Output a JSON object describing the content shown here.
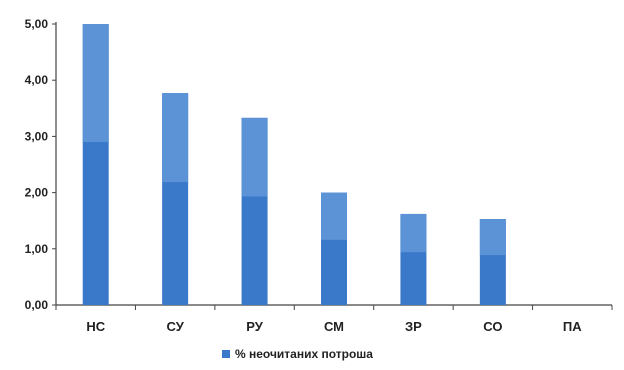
{
  "chart_data": {
    "type": "bar",
    "categories": [
      "НС",
      "СУ",
      "РУ",
      "СМ",
      "ЗР",
      "СО",
      "ПА"
    ],
    "series": [
      {
        "name": "% неочитаних потроша",
        "values": [
          5.0,
          3.77,
          3.33,
          2.0,
          1.62,
          1.53,
          0.0
        ]
      }
    ],
    "y_ticks": [
      "0,00",
      "1,00",
      "2,00",
      "3,00",
      "4,00",
      "5,00"
    ],
    "ylim": [
      0,
      5
    ],
    "grid": false,
    "legend_position": "bottom",
    "colors": {
      "bar": "#3a78c9",
      "bar_light": "#5b93d6",
      "axis": "#444444"
    }
  }
}
